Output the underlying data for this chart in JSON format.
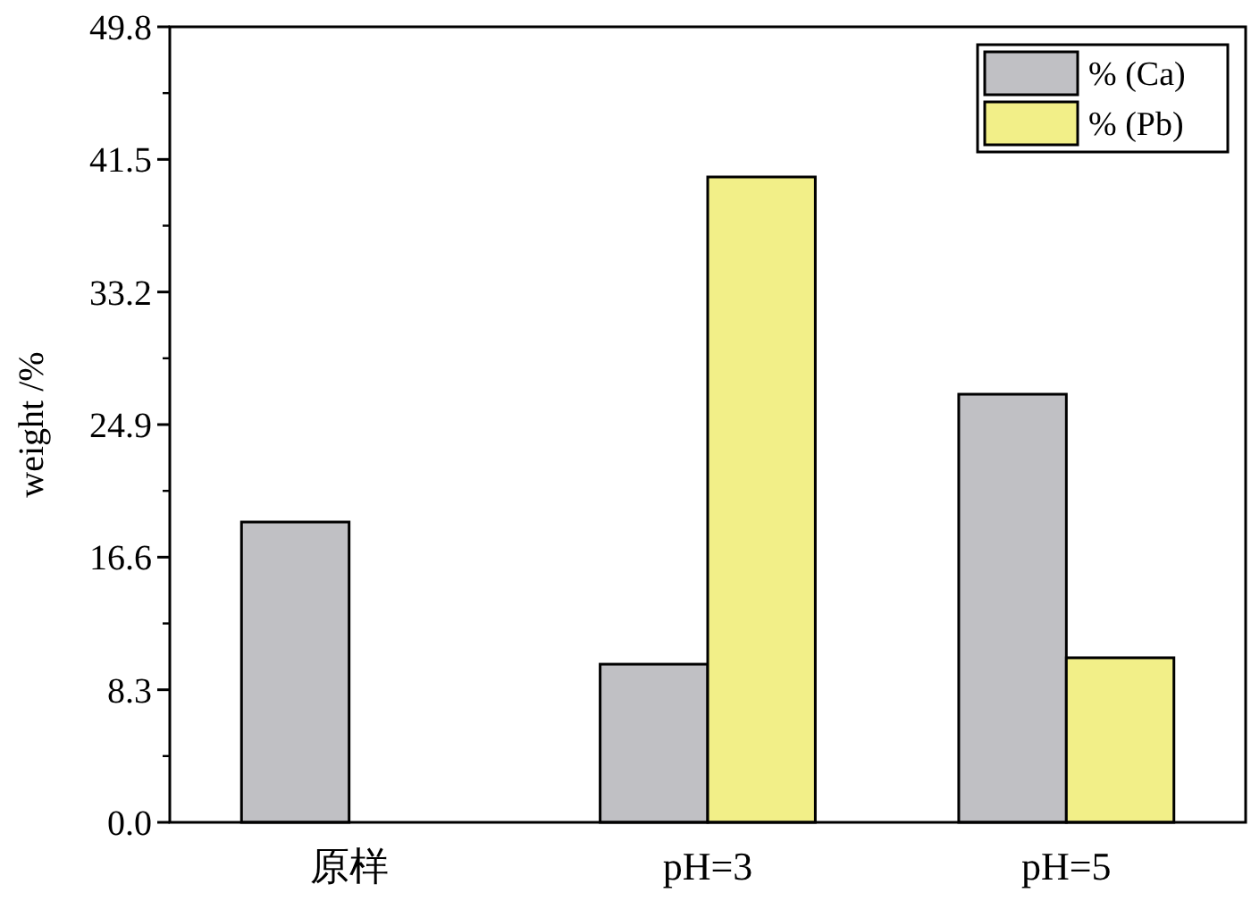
{
  "chart_data": {
    "type": "bar",
    "ylabel": "weight /%",
    "categories": [
      "原样",
      "pH=3",
      "pH=5"
    ],
    "series": [
      {
        "name": "% (Ca)",
        "color": "#c0c0c4",
        "values": [
          18.8,
          9.9,
          26.8
        ]
      },
      {
        "name": "% (Pb)",
        "color": "#f2ef88",
        "values": [
          null,
          40.4,
          10.3
        ]
      }
    ],
    "ylim": [
      0,
      49.8
    ],
    "yticks": [
      {
        "value": 0,
        "label": "0.0"
      },
      8.3,
      16.6,
      24.9,
      33.2,
      41.5,
      49.8
    ],
    "legend": "top right",
    "grid": false
  }
}
